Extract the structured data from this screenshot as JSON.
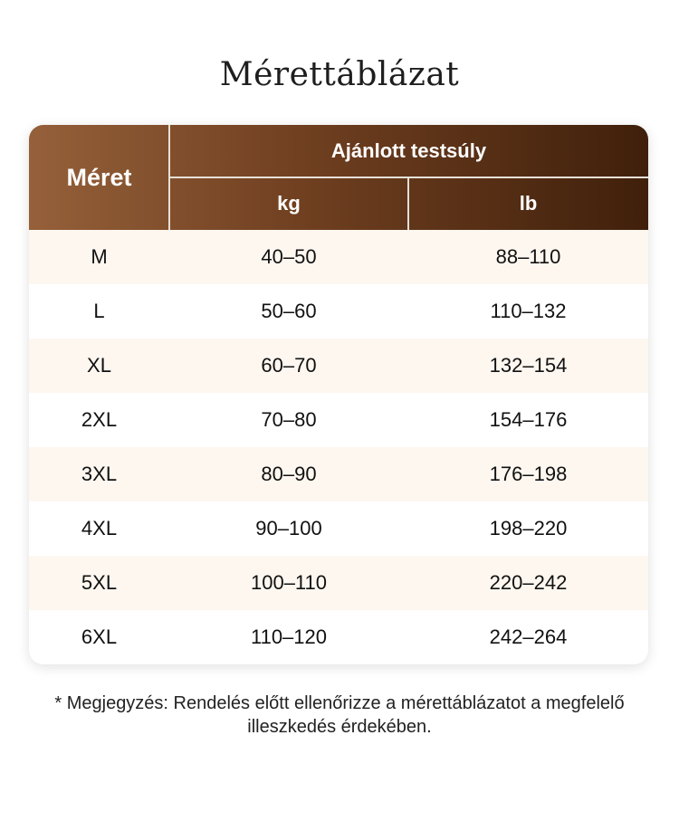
{
  "title": "Mérettáblázat",
  "header": {
    "size": "Méret",
    "group": "Ajánlott testsúly",
    "kg": "kg",
    "lb": "lb"
  },
  "rows": [
    {
      "size": "M",
      "kg": "40–50",
      "lb": "88–110"
    },
    {
      "size": "L",
      "kg": "50–60",
      "lb": "110–132"
    },
    {
      "size": "XL",
      "kg": "60–70",
      "lb": "132–154"
    },
    {
      "size": "2XL",
      "kg": "70–80",
      "lb": "154–176"
    },
    {
      "size": "3XL",
      "kg": "80–90",
      "lb": "176–198"
    },
    {
      "size": "4XL",
      "kg": "90–100",
      "lb": "198–220"
    },
    {
      "size": "5XL",
      "kg": "100–110",
      "lb": "220–242"
    },
    {
      "size": "6XL",
      "kg": "110–120",
      "lb": "242–264"
    }
  ],
  "note": "* Megjegyzés: Rendelés előtt ellenőrizze a mérettáblázatot a megfelelő illeszkedés érdekében.",
  "colors": {
    "header_start": "#95603a",
    "header_end": "#40200b",
    "row_alt": "#fdf7f0"
  }
}
